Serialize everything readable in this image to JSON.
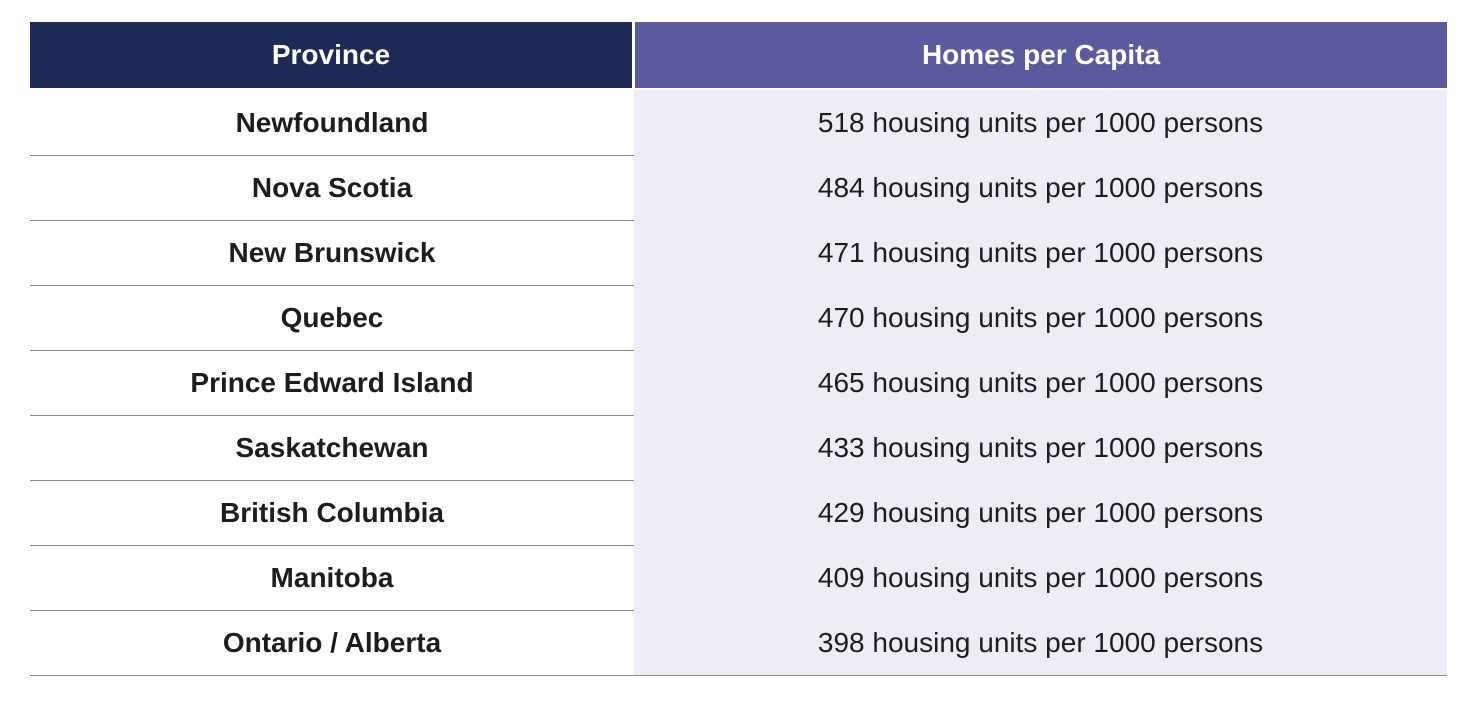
{
  "table": {
    "header": [
      "Province",
      "Homes per Capita"
    ],
    "rows": [
      [
        "Newfoundland",
        "518 housing units per 1000 persons"
      ],
      [
        "Nova Scotia",
        "484 housing units per 1000 persons"
      ],
      [
        "New Brunswick",
        "471 housing units per 1000 persons"
      ],
      [
        "Quebec",
        "470 housing units per 1000 persons"
      ],
      [
        "Prince Edward Island",
        "465 housing units per 1000 persons"
      ],
      [
        "Saskatchewan",
        "433 housing units per 1000 persons"
      ],
      [
        "British Columbia",
        "429 housing units per 1000 persons"
      ],
      [
        "Manitoba",
        "409 housing units per 1000 persons"
      ],
      [
        "Ontario / Alberta",
        "398 housing units per 1000 persons"
      ]
    ]
  }
}
